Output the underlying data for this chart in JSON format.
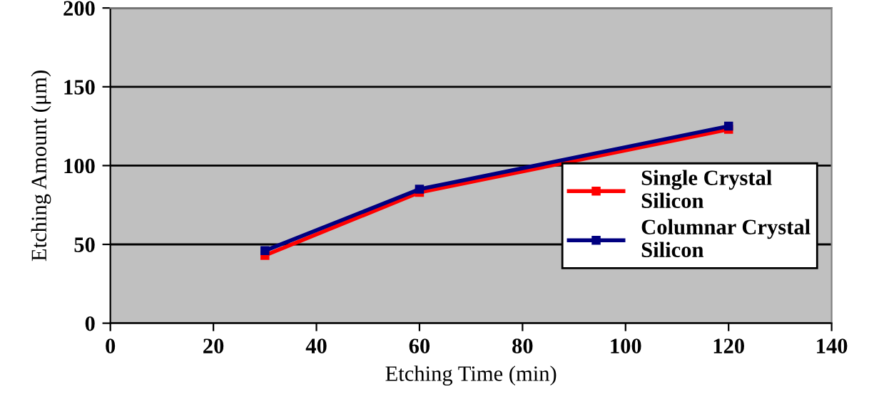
{
  "chart_data": {
    "type": "line",
    "xlabel": "Etching Time (min)",
    "ylabel": "Etching Amount (μm)",
    "x": [
      30,
      60,
      120
    ],
    "series": [
      {
        "name": "Single Crystal Silicon",
        "color": "#ff0000",
        "values": [
          43,
          83,
          123
        ]
      },
      {
        "name": "Columnar Crystal Silicon",
        "color": "#000080",
        "values": [
          46,
          85,
          125
        ]
      }
    ],
    "xlim": [
      0,
      140
    ],
    "xticks": [
      0,
      20,
      40,
      60,
      80,
      100,
      120,
      140
    ],
    "ylim": [
      0,
      200
    ],
    "yticks": [
      0,
      50,
      100,
      150,
      200
    ],
    "grid": "y",
    "legend": "bottom right",
    "marker": "square",
    "line_style": "solid"
  }
}
